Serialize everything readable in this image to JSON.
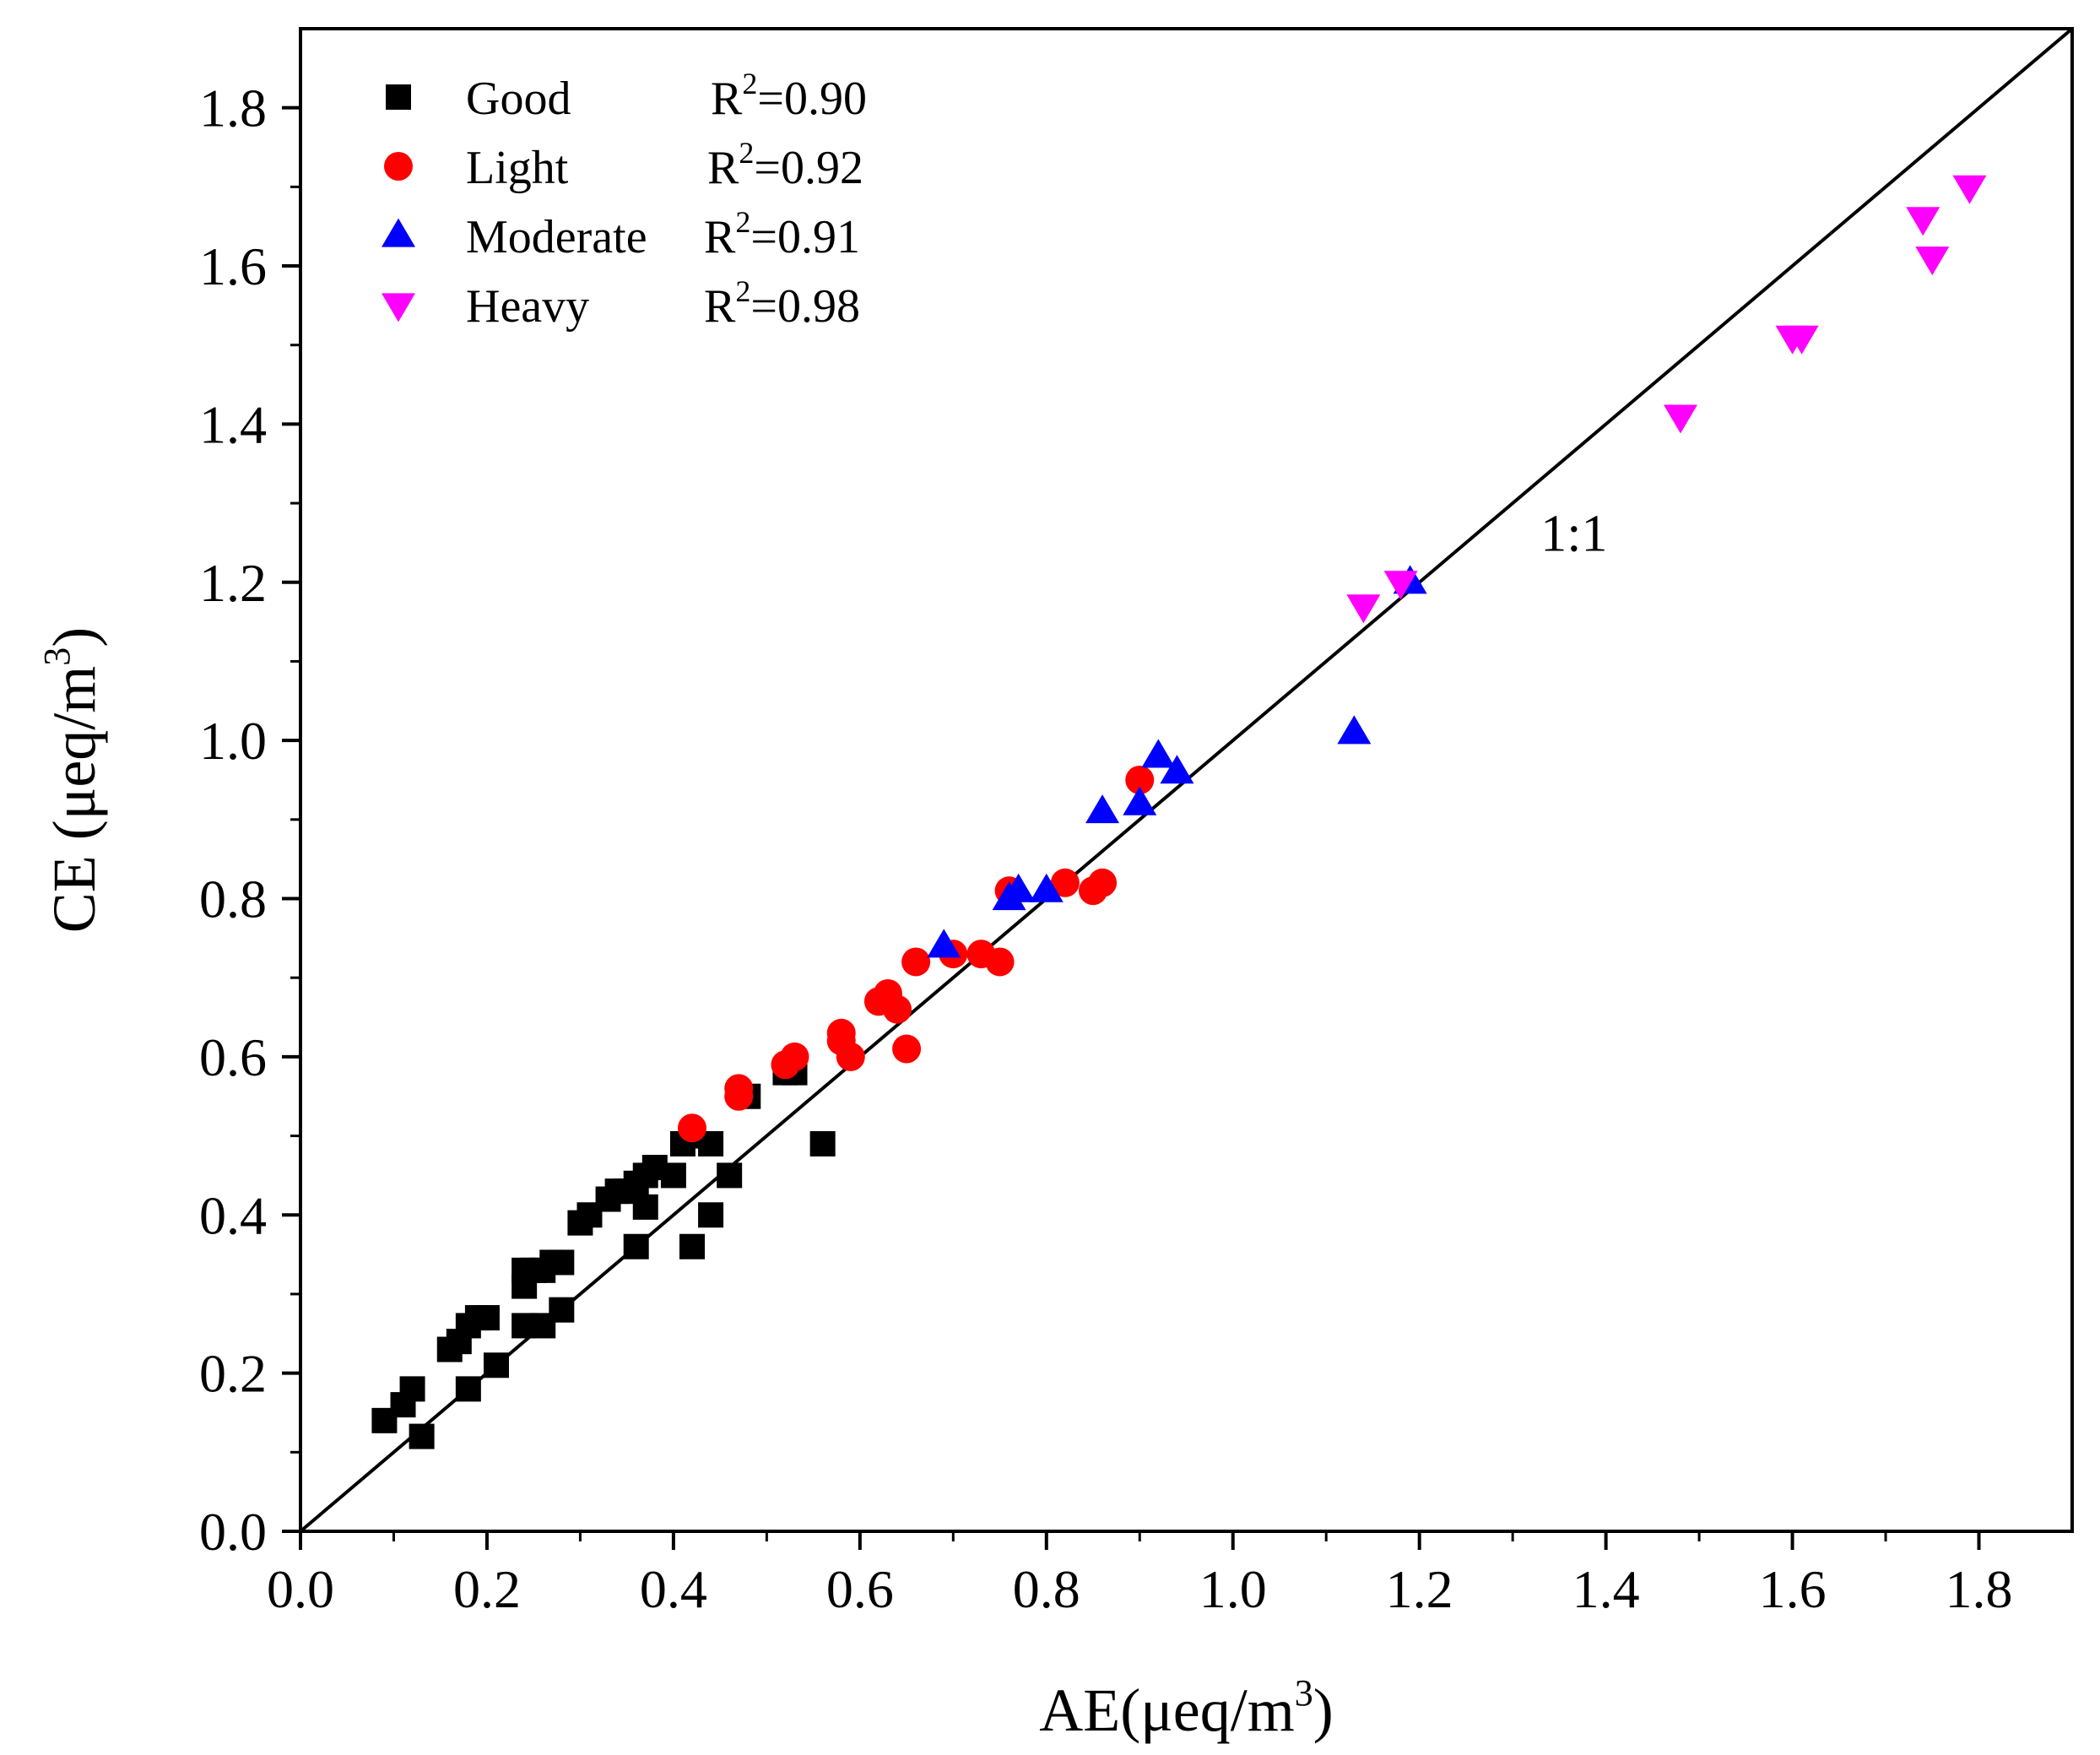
{
  "chart_data": {
    "type": "scatter",
    "title": "",
    "xlabel": "AE(μeq/m",
    "xlabel_sup": "3",
    "xlabel_end": ")",
    "ylabel": "CE  (μeq/m",
    "ylabel_sup": "3",
    "ylabel_end": ")",
    "xlim": [
      0.0,
      1.9
    ],
    "ylim": [
      0.0,
      1.9
    ],
    "xticks": [
      0.0,
      0.2,
      0.4,
      0.6,
      0.8,
      1.0,
      1.2,
      1.4,
      1.6,
      1.8
    ],
    "yticks": [
      0.0,
      0.2,
      0.4,
      0.6,
      0.8,
      1.0,
      1.2,
      1.4,
      1.6,
      1.8
    ],
    "xtick_labels": [
      "0.0",
      "0.2",
      "0.4",
      "0.6",
      "0.8",
      "1.0",
      "1.2",
      "1.4",
      "1.6",
      "1.8"
    ],
    "ytick_labels": [
      "0.0",
      "0.2",
      "0.4",
      "0.6",
      "0.8",
      "1.0",
      "1.2",
      "1.4",
      "1.6",
      "1.8"
    ],
    "reference_line": {
      "label": "1:1",
      "label_x": 1.33,
      "label_y": 1.24
    },
    "legend_location": "top-left",
    "series": [
      {
        "name": "Good",
        "r2_prefix": "R",
        "r2_sup": "2",
        "r2_value": "=0.90",
        "marker": "square",
        "color": "#000000",
        "points": [
          [
            0.09,
            0.14
          ],
          [
            0.11,
            0.16
          ],
          [
            0.12,
            0.18
          ],
          [
            0.13,
            0.12
          ],
          [
            0.16,
            0.23
          ],
          [
            0.17,
            0.24
          ],
          [
            0.18,
            0.26
          ],
          [
            0.19,
            0.27
          ],
          [
            0.2,
            0.27
          ],
          [
            0.18,
            0.18
          ],
          [
            0.21,
            0.21
          ],
          [
            0.24,
            0.31
          ],
          [
            0.24,
            0.33
          ],
          [
            0.25,
            0.33
          ],
          [
            0.26,
            0.33
          ],
          [
            0.27,
            0.34
          ],
          [
            0.28,
            0.34
          ],
          [
            0.24,
            0.26
          ],
          [
            0.26,
            0.26
          ],
          [
            0.28,
            0.28
          ],
          [
            0.3,
            0.39
          ],
          [
            0.31,
            0.4
          ],
          [
            0.33,
            0.42
          ],
          [
            0.34,
            0.43
          ],
          [
            0.35,
            0.43
          ],
          [
            0.36,
            0.44
          ],
          [
            0.37,
            0.45
          ],
          [
            0.38,
            0.46
          ],
          [
            0.37,
            0.41
          ],
          [
            0.4,
            0.45
          ],
          [
            0.41,
            0.49
          ],
          [
            0.42,
            0.5
          ],
          [
            0.44,
            0.49
          ],
          [
            0.36,
            0.36
          ],
          [
            0.42,
            0.36
          ],
          [
            0.44,
            0.4
          ],
          [
            0.46,
            0.45
          ],
          [
            0.48,
            0.55
          ],
          [
            0.52,
            0.58
          ],
          [
            0.53,
            0.58
          ],
          [
            0.56,
            0.49
          ]
        ]
      },
      {
        "name": "Light",
        "r2_prefix": "R",
        "r2_sup": "2",
        "r2_value": "=0.92",
        "marker": "circle",
        "color": "#ff0000",
        "points": [
          [
            0.42,
            0.51
          ],
          [
            0.47,
            0.55
          ],
          [
            0.47,
            0.56
          ],
          [
            0.52,
            0.59
          ],
          [
            0.53,
            0.6
          ],
          [
            0.58,
            0.63
          ],
          [
            0.58,
            0.62
          ],
          [
            0.59,
            0.6
          ],
          [
            0.62,
            0.67
          ],
          [
            0.63,
            0.68
          ],
          [
            0.64,
            0.66
          ],
          [
            0.65,
            0.61
          ],
          [
            0.66,
            0.72
          ],
          [
            0.7,
            0.73
          ],
          [
            0.73,
            0.73
          ],
          [
            0.75,
            0.72
          ],
          [
            0.76,
            0.81
          ],
          [
            0.82,
            0.82
          ],
          [
            0.85,
            0.81
          ],
          [
            0.86,
            0.82
          ],
          [
            0.9,
            0.95
          ]
        ]
      },
      {
        "name": "Moderate",
        "r2_prefix": "R",
        "r2_sup": "2",
        "r2_value": "=0.91",
        "marker": "triangle-up",
        "color": "#0000ff",
        "points": [
          [
            0.69,
            0.74
          ],
          [
            0.76,
            0.8
          ],
          [
            0.77,
            0.81
          ],
          [
            0.8,
            0.81
          ],
          [
            0.86,
            0.91
          ],
          [
            0.9,
            0.92
          ],
          [
            0.92,
            0.98
          ],
          [
            0.94,
            0.96
          ],
          [
            1.13,
            1.01
          ],
          [
            1.19,
            1.2
          ]
        ]
      },
      {
        "name": "Heavy",
        "r2_prefix": "R",
        "r2_sup": "2",
        "r2_value": "=0.98",
        "marker": "triangle-down",
        "color": "#ff00ff",
        "points": [
          [
            1.14,
            1.17
          ],
          [
            1.18,
            1.2
          ],
          [
            1.48,
            1.41
          ],
          [
            1.6,
            1.51
          ],
          [
            1.61,
            1.51
          ],
          [
            1.74,
            1.66
          ],
          [
            1.75,
            1.61
          ],
          [
            1.79,
            1.7
          ]
        ]
      }
    ]
  }
}
